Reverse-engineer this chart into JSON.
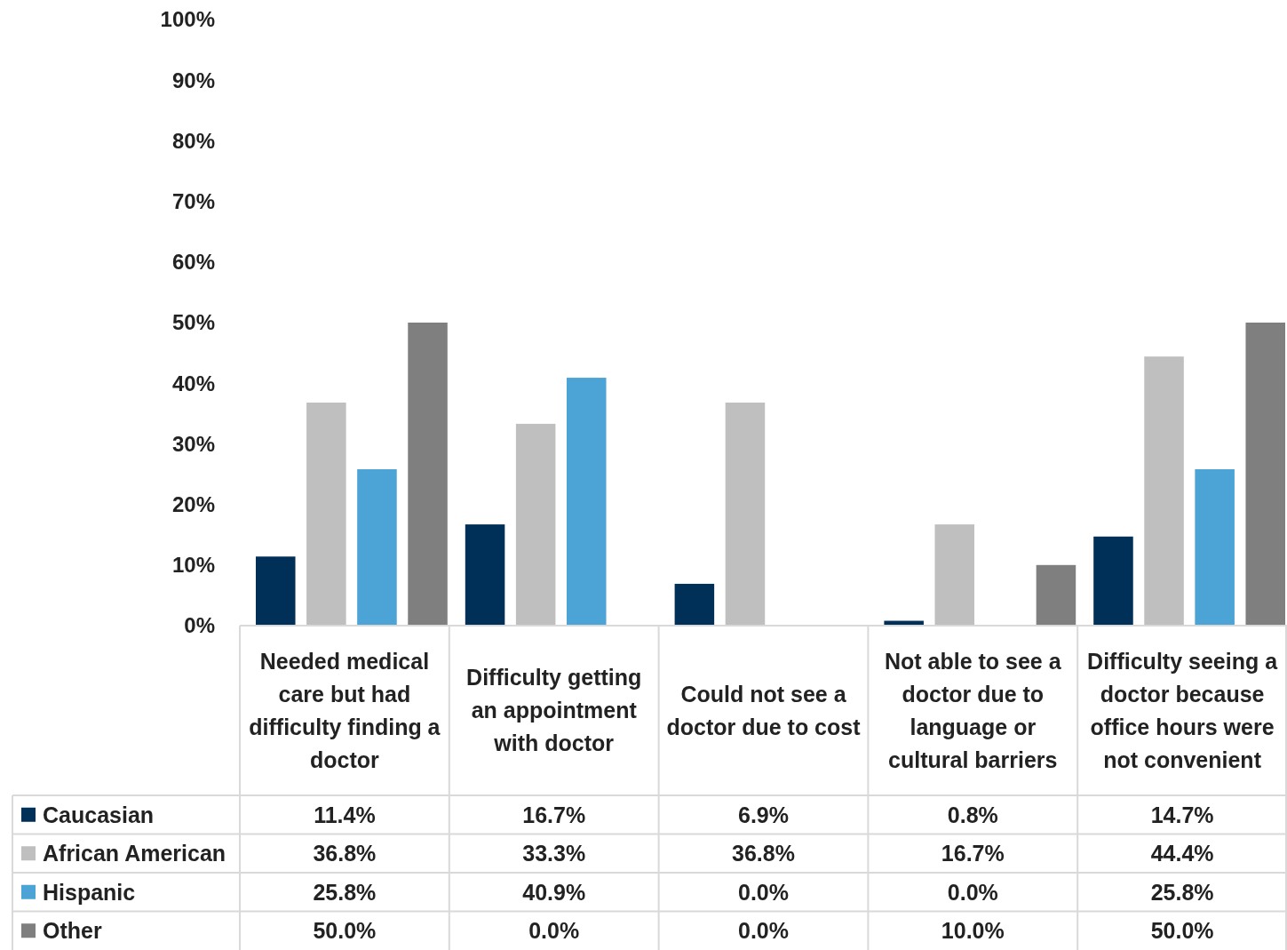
{
  "chart_data": {
    "type": "bar",
    "categories": [
      "Needed medical care but had difficulty finding a doctor",
      "Difficulty getting an appointment with doctor",
      "Could not see a doctor due to cost",
      "Not able to see a doctor due to language or cultural barriers",
      "Difficulty seeing a doctor because office hours were not convenient"
    ],
    "series": [
      {
        "name": "Caucasian",
        "color": "#003057",
        "values": [
          11.4,
          16.7,
          6.9,
          0.8,
          14.7
        ],
        "value_labels": [
          "11.4%",
          "16.7%",
          "6.9%",
          "0.8%",
          "14.7%"
        ]
      },
      {
        "name": "African American",
        "color": "#bfbfbf",
        "values": [
          36.8,
          33.3,
          36.8,
          16.7,
          44.4
        ],
        "value_labels": [
          "36.8%",
          "33.3%",
          "36.8%",
          "16.7%",
          "44.4%"
        ]
      },
      {
        "name": "Hispanic",
        "color": "#4ba3d6",
        "values": [
          25.8,
          40.9,
          0.0,
          0.0,
          25.8
        ],
        "value_labels": [
          "25.8%",
          "40.9%",
          "0.0%",
          "0.0%",
          "25.8%"
        ]
      },
      {
        "name": "Other",
        "color": "#7f7f7f",
        "values": [
          50.0,
          0.0,
          0.0,
          10.0,
          50.0
        ],
        "value_labels": [
          "50.0%",
          "0.0%",
          "0.0%",
          "10.0%",
          "50.0%"
        ]
      }
    ],
    "ylim": [
      0,
      100
    ],
    "yticks": [
      {
        "value": 0,
        "label": "0%"
      },
      {
        "value": 10,
        "label": "10%"
      },
      {
        "value": 20,
        "label": "20%"
      },
      {
        "value": 30,
        "label": "30%"
      },
      {
        "value": 40,
        "label": "40%"
      },
      {
        "value": 50,
        "label": "50%"
      },
      {
        "value": 60,
        "label": "60%"
      },
      {
        "value": 70,
        "label": "70%"
      },
      {
        "value": 80,
        "label": "80%"
      },
      {
        "value": 90,
        "label": "90%"
      },
      {
        "value": 100,
        "label": "100%"
      }
    ],
    "legend": "bottom"
  }
}
